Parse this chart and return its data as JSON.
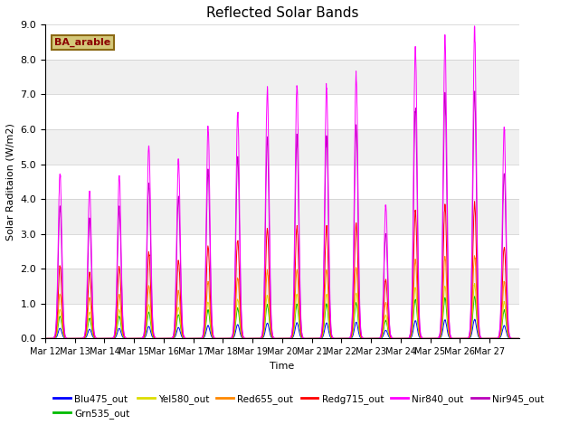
{
  "title": "Reflected Solar Bands",
  "xlabel": "Time",
  "ylabel": "Solar Raditaion (W/m2)",
  "ylim": [
    0,
    9.0
  ],
  "yticks": [
    0.0,
    1.0,
    2.0,
    3.0,
    4.0,
    5.0,
    6.0,
    7.0,
    8.0,
    9.0
  ],
  "plot_bg_color": "#f0f0f0",
  "annotation_text": "BA_arable",
  "annotation_color": "#8B0000",
  "annotation_bg": "#d4c87a",
  "annotation_edge": "#8B6914",
  "colors": {
    "Blu475_out": "#0000ff",
    "Grn535_out": "#00bb00",
    "Yel580_out": "#dddd00",
    "Red655_out": "#ff8800",
    "Redg715_out": "#ff0000",
    "Nir840_out": "#ff00ff",
    "Nir945_out": "#bb00bb"
  },
  "scales": {
    "Blu475_out": 0.062,
    "Grn535_out": 0.135,
    "Yel580_out": 0.175,
    "Red655_out": 0.27,
    "Redg715_out": 0.44,
    "Nir840_out": 1.0,
    "Nir945_out": 0.8
  },
  "n_days": 16,
  "peaks_nir840": [
    4.7,
    4.3,
    4.65,
    5.55,
    5.05,
    6.0,
    6.45,
    7.15,
    7.25,
    7.25,
    7.55,
    3.8,
    8.3,
    8.65,
    8.85,
    6.0
  ],
  "x_tick_labels": [
    "Mar 12",
    "Mar 13",
    "Mar 14",
    "Mar 15",
    "Mar 16",
    "Mar 17",
    "Mar 18",
    "Mar 19",
    "Mar 20",
    "Mar 21",
    "Mar 22",
    "Mar 23",
    "Mar 24",
    "Mar 25",
    "Mar 26",
    "Mar 27"
  ],
  "plot_order": [
    "Blu475_out",
    "Grn535_out",
    "Yel580_out",
    "Red655_out",
    "Redg715_out",
    "Nir945_out",
    "Nir840_out"
  ],
  "legend_order": [
    "Blu475_out",
    "Grn535_out",
    "Yel580_out",
    "Red655_out",
    "Redg715_out",
    "Nir840_out",
    "Nir945_out"
  ]
}
